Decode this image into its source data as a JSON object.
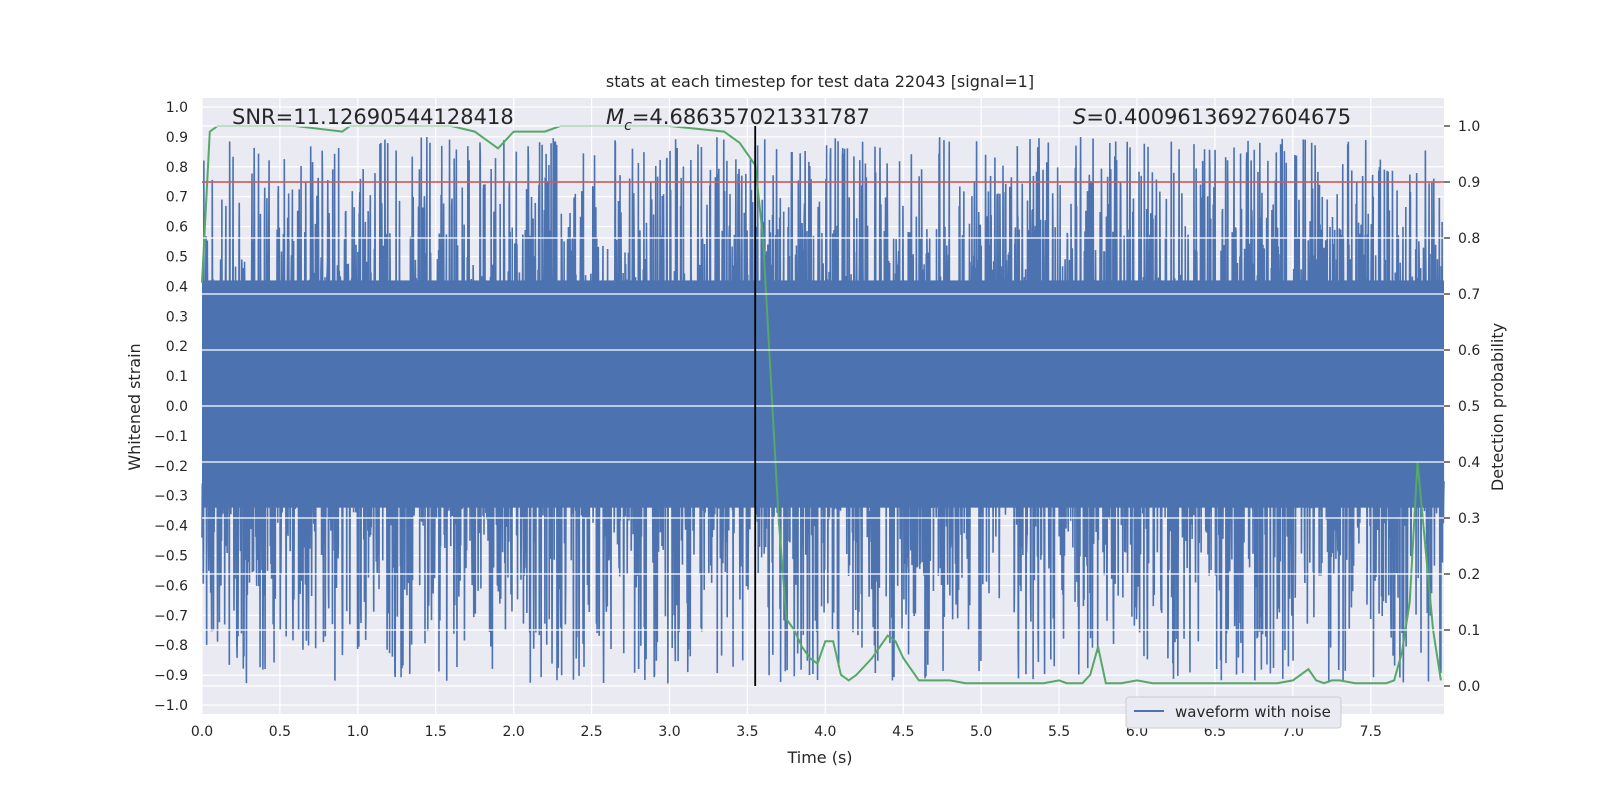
{
  "chart_data": {
    "type": "line",
    "title": "stats at each timestep for test data 22043 [signal=1]",
    "xlabel": "Time (s)",
    "ylabel": "Whitened strain",
    "y2label": "Detection probability",
    "xlim": [
      0.0,
      7.97
    ],
    "ylim": [
      -1.03,
      1.03
    ],
    "y2lim": [
      -0.05,
      1.05
    ],
    "xticks": [
      "0.0",
      "0.5",
      "1.0",
      "1.5",
      "2.0",
      "2.5",
      "3.0",
      "3.5",
      "4.0",
      "4.5",
      "5.0",
      "5.5",
      "6.0",
      "6.5",
      "7.0",
      "7.5"
    ],
    "yticks": [
      "1.0",
      "0.9",
      "0.8",
      "0.7",
      "0.6",
      "0.5",
      "0.4",
      "0.3",
      "0.2",
      "0.1",
      "0.0",
      "−0.1",
      "−0.2",
      "−0.3",
      "−0.4",
      "−0.5",
      "−0.6",
      "−0.7",
      "−0.8",
      "−0.9",
      "−1.0"
    ],
    "y2ticks": [
      "1.0",
      "0.9",
      "0.8",
      "0.7",
      "0.6",
      "0.5",
      "0.4",
      "0.3",
      "0.2",
      "0.1",
      "0.0"
    ],
    "annotations": {
      "snr": "SNR=11.12690544128418",
      "mc_symbol": "M",
      "mc_sub": "c",
      "mc_value": "=4.686357021331787",
      "s_symbol": "S",
      "s_value": "=0.40096136927604675"
    },
    "threshold_y2": 0.9,
    "marker_time": 3.55,
    "marker_y2_range": [
      0.0,
      1.0
    ],
    "series": [
      {
        "name": "waveform with noise",
        "axis": "left",
        "color": "#4c72b0",
        "style": "noise",
        "core_range": [
          -0.34,
          0.42
        ],
        "spike_max": 0.9,
        "spike_min": -0.93
      },
      {
        "name": "detection probability",
        "axis": "right",
        "color": "#55a868",
        "x": [
          0.0,
          0.05,
          0.1,
          0.3,
          0.6,
          0.9,
          0.95,
          1.0,
          1.3,
          1.6,
          1.75,
          1.8,
          1.9,
          2.0,
          2.1,
          2.2,
          2.3,
          2.6,
          3.0,
          3.35,
          3.45,
          3.5,
          3.55,
          3.6,
          3.65,
          3.7,
          3.75,
          3.8,
          3.85,
          3.9,
          3.95,
          4.0,
          4.05,
          4.1,
          4.15,
          4.2,
          4.3,
          4.4,
          4.45,
          4.5,
          4.55,
          4.6,
          4.65,
          4.7,
          4.8,
          4.9,
          5.0,
          5.2,
          5.4,
          5.5,
          5.55,
          5.6,
          5.65,
          5.7,
          5.75,
          5.8,
          5.85,
          5.9,
          6.0,
          6.1,
          6.3,
          6.5,
          6.7,
          6.9,
          7.0,
          7.05,
          7.1,
          7.15,
          7.2,
          7.25,
          7.3,
          7.4,
          7.5,
          7.6,
          7.65,
          7.7,
          7.75,
          7.8,
          7.85,
          7.9,
          7.95
        ],
        "y": [
          0.72,
          0.99,
          1.0,
          1.0,
          1.0,
          0.99,
          1.0,
          1.0,
          1.0,
          1.0,
          0.99,
          0.98,
          0.96,
          0.99,
          0.99,
          0.99,
          1.0,
          1.0,
          1.0,
          0.99,
          0.97,
          0.95,
          0.93,
          0.8,
          0.55,
          0.3,
          0.12,
          0.1,
          0.07,
          0.05,
          0.04,
          0.08,
          0.08,
          0.02,
          0.01,
          0.02,
          0.05,
          0.09,
          0.08,
          0.05,
          0.03,
          0.01,
          0.01,
          0.01,
          0.01,
          0.005,
          0.005,
          0.005,
          0.005,
          0.01,
          0.005,
          0.005,
          0.005,
          0.02,
          0.07,
          0.005,
          0.005,
          0.005,
          0.01,
          0.005,
          0.005,
          0.005,
          0.005,
          0.005,
          0.01,
          0.02,
          0.03,
          0.01,
          0.005,
          0.01,
          0.01,
          0.005,
          0.005,
          0.005,
          0.01,
          0.06,
          0.15,
          0.4,
          0.25,
          0.1,
          0.01
        ]
      }
    ],
    "legend": {
      "label": "waveform with noise",
      "placement": "bottom-right"
    }
  }
}
